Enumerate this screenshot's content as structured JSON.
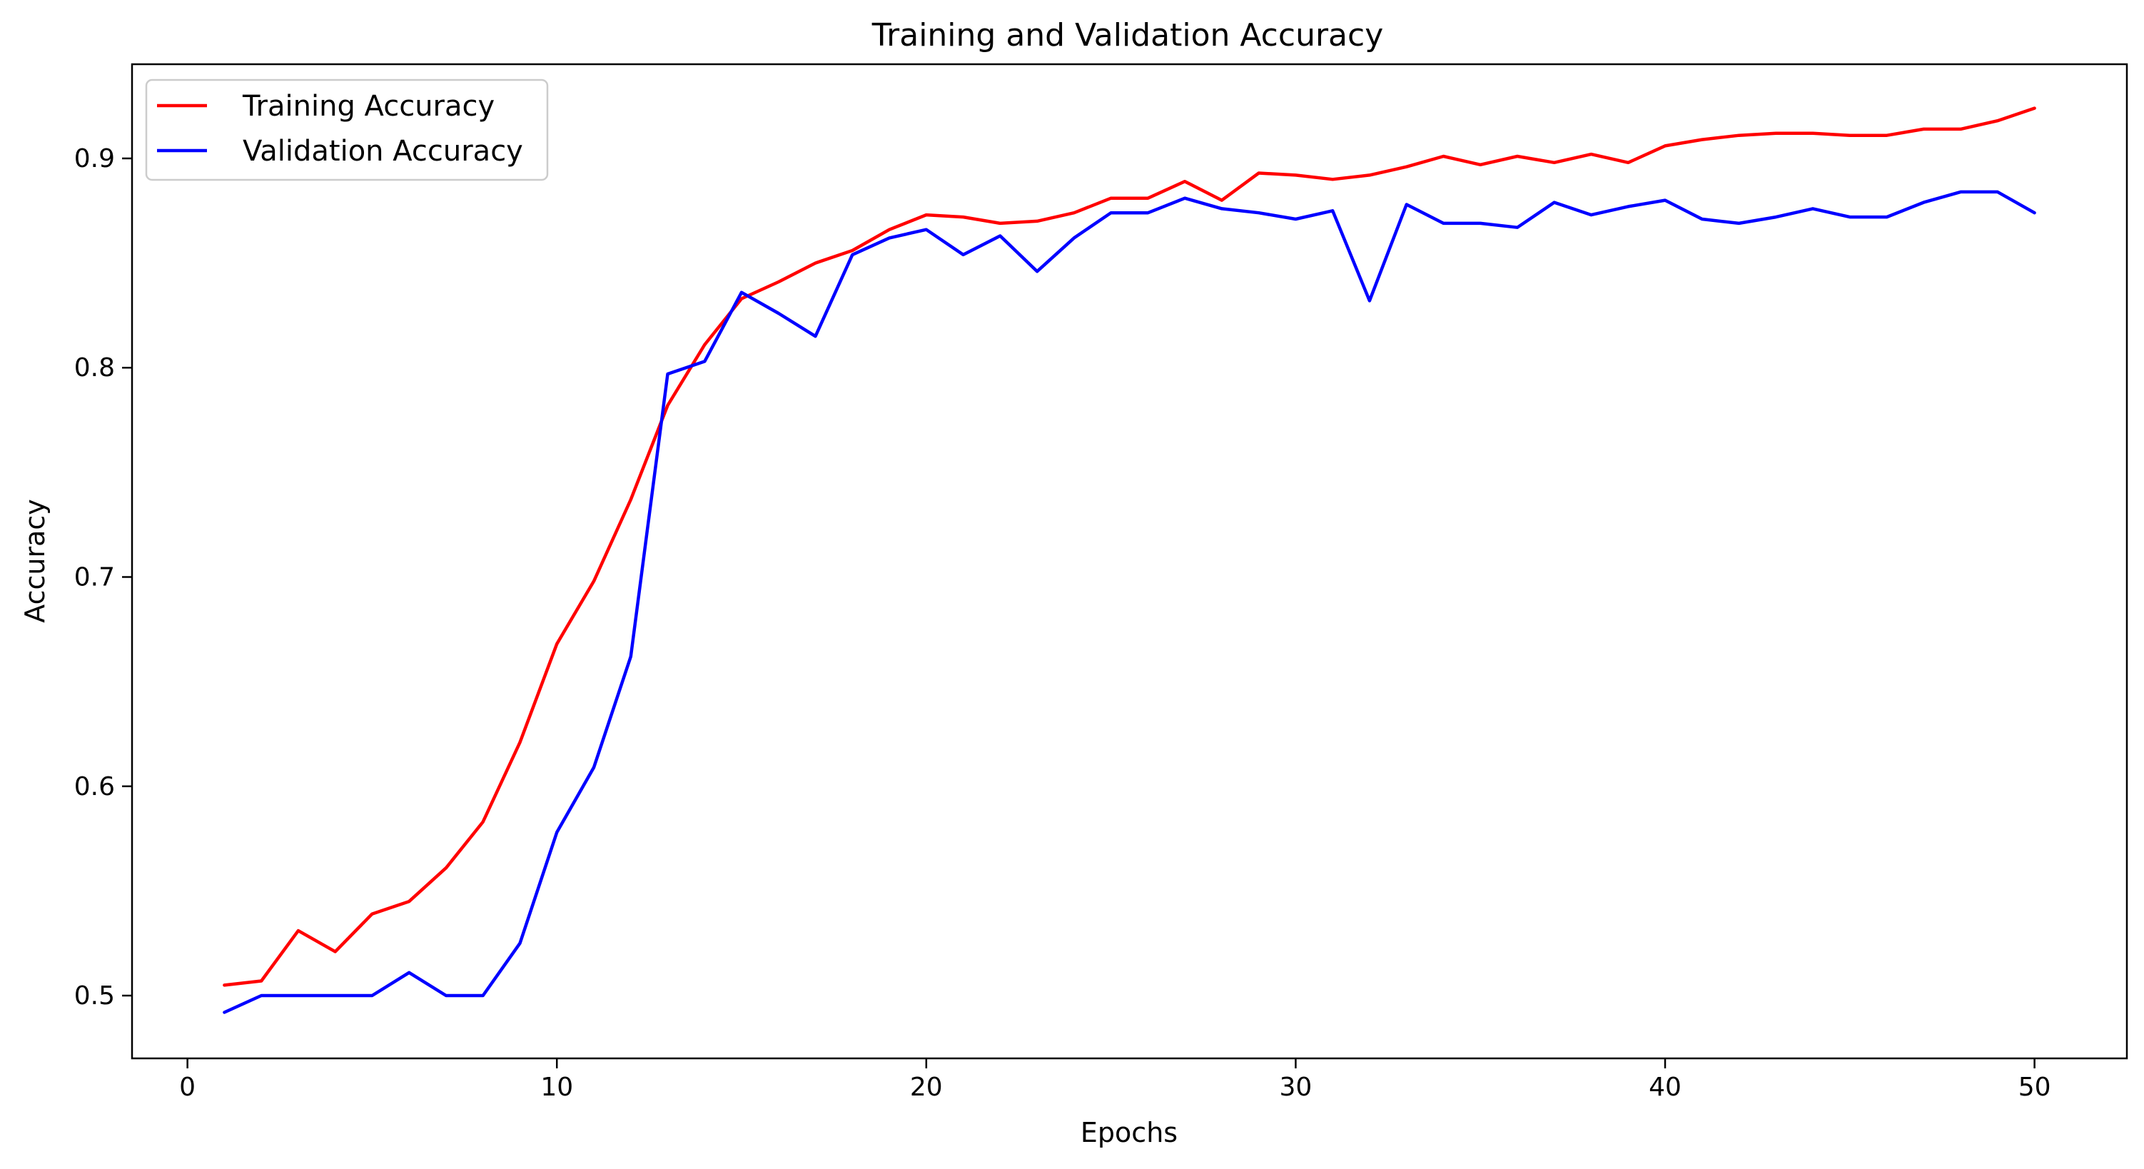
{
  "chart_data": {
    "type": "line",
    "title": "Training and Validation Accuracy",
    "xlabel": "Epochs",
    "ylabel": "Accuracy",
    "xlim": [
      -1.5,
      52.5
    ],
    "ylim": [
      0.47,
      0.945
    ],
    "xticks": [
      0,
      10,
      20,
      30,
      40,
      50
    ],
    "xtick_labels": [
      "0",
      "10",
      "20",
      "30",
      "40",
      "50"
    ],
    "yticks": [
      0.5,
      0.6,
      0.7,
      0.8,
      0.9
    ],
    "ytick_labels": [
      "0.5",
      "0.6",
      "0.7",
      "0.8",
      "0.9"
    ],
    "grid": false,
    "legend": "top-left",
    "x": [
      1,
      2,
      3,
      4,
      5,
      6,
      7,
      8,
      9,
      10,
      11,
      12,
      13,
      14,
      15,
      16,
      17,
      18,
      19,
      20,
      21,
      22,
      23,
      24,
      25,
      26,
      27,
      28,
      29,
      30,
      31,
      32,
      33,
      34,
      35,
      36,
      37,
      38,
      39,
      40,
      41,
      42,
      43,
      44,
      45,
      46,
      47,
      48,
      49,
      50
    ],
    "series": [
      {
        "name": "Training Accuracy",
        "color": "#ff0000",
        "values": [
          0.505,
          0.507,
          0.531,
          0.521,
          0.539,
          0.545,
          0.561,
          0.583,
          0.621,
          0.668,
          0.698,
          0.737,
          0.782,
          0.811,
          0.833,
          0.841,
          0.85,
          0.856,
          0.866,
          0.873,
          0.872,
          0.869,
          0.87,
          0.874,
          0.881,
          0.881,
          0.889,
          0.88,
          0.893,
          0.892,
          0.89,
          0.892,
          0.896,
          0.901,
          0.897,
          0.901,
          0.898,
          0.902,
          0.898,
          0.906,
          0.909,
          0.911,
          0.912,
          0.912,
          0.911,
          0.911,
          0.914,
          0.914,
          0.918,
          0.924
        ]
      },
      {
        "name": "Validation Accuracy",
        "color": "#0000ff",
        "values": [
          0.492,
          0.5,
          0.5,
          0.5,
          0.5,
          0.511,
          0.5,
          0.5,
          0.525,
          0.578,
          0.609,
          0.662,
          0.797,
          0.803,
          0.836,
          0.826,
          0.815,
          0.854,
          0.862,
          0.866,
          0.854,
          0.863,
          0.846,
          0.862,
          0.874,
          0.874,
          0.881,
          0.876,
          0.874,
          0.871,
          0.875,
          0.832,
          0.878,
          0.869,
          0.869,
          0.867,
          0.879,
          0.873,
          0.877,
          0.88,
          0.871,
          0.869,
          0.872,
          0.876,
          0.872,
          0.872,
          0.879,
          0.884,
          0.884,
          0.874
        ]
      }
    ]
  }
}
